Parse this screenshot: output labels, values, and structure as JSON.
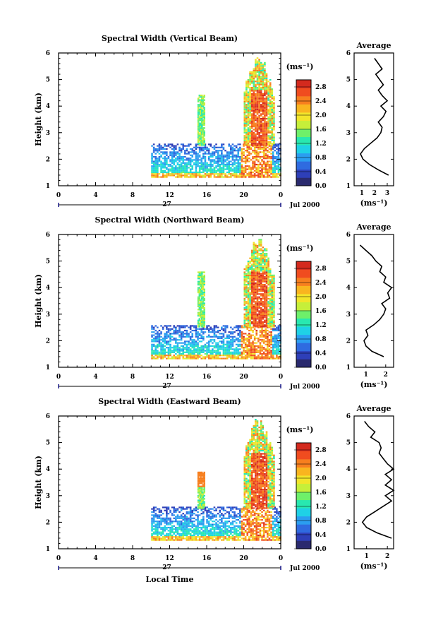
{
  "chart_data": {
    "type": "heatmap",
    "axes_style": {
      "frame_color": "#000000",
      "colorbar_low": "#2a2a6e",
      "colorbar_high": "#d42a1e"
    },
    "color_stops": [
      "#2a2a6e",
      "#2e3fb8",
      "#2f6be0",
      "#2b9ef0",
      "#1fd1e6",
      "#28e8b0",
      "#6ef06a",
      "#c6ef3a",
      "#f2e52a",
      "#f9b51f",
      "#f77f1e",
      "#f04c1f",
      "#d42a1e"
    ],
    "panels": [
      {
        "id": "vertical",
        "title": "Spectral Width (Vertical Beam)",
        "ylabel": "Height (km)",
        "ylim": [
          1,
          6
        ],
        "yticks": [
          "1",
          "2",
          "3",
          "4",
          "5",
          "6"
        ],
        "xlim": [
          0,
          24
        ],
        "xticks": [
          "0",
          "4",
          "8",
          "12",
          "16",
          "20",
          "0"
        ],
        "day_label": "27",
        "date_label": "Jul 2000",
        "colorbar": {
          "unit": "(ms⁻¹)",
          "range": [
            0.0,
            3.0
          ],
          "ticks": [
            "2.8",
            "2.4",
            "2.0",
            "1.6",
            "1.2",
            "0.8",
            "0.4",
            "0.0"
          ]
        },
        "avg_title": "Average",
        "avg_xlabel": "(ms⁻¹)",
        "avg_xlim": [
          0.4,
          3.5
        ],
        "avg_xticks": [
          1,
          2,
          3
        ],
        "avg_xticklabels": [
          "1",
          "2",
          "3"
        ],
        "average_profile": {
          "heights": [
            1.4,
            1.6,
            1.8,
            2.0,
            2.2,
            2.4,
            2.6,
            2.8,
            3.0,
            3.2,
            3.4,
            3.6,
            3.8,
            4.0,
            4.2,
            4.4,
            4.6,
            4.8,
            5.0,
            5.2,
            5.4,
            5.6,
            5.8
          ],
          "values": [
            3.1,
            2.3,
            1.6,
            1.1,
            0.9,
            1.2,
            1.7,
            2.2,
            2.5,
            2.6,
            2.3,
            2.7,
            2.9,
            2.5,
            3.0,
            2.6,
            2.3,
            2.7,
            2.4,
            2.1,
            2.6,
            2.3,
            2.0
          ]
        }
      },
      {
        "id": "northward",
        "title": "Spectral Width (Northward Beam)",
        "ylabel": "Height (km)",
        "ylim": [
          1,
          6
        ],
        "yticks": [
          "1",
          "2",
          "3",
          "4",
          "5",
          "6"
        ],
        "xlim": [
          0,
          24
        ],
        "xticks": [
          "0",
          "4",
          "8",
          "12",
          "16",
          "20",
          "0"
        ],
        "day_label": "27",
        "date_label": "Jul 2000",
        "colorbar": {
          "unit": "(ms⁻¹)",
          "range": [
            0.0,
            3.0
          ],
          "ticks": [
            "2.8",
            "2.4",
            "2.0",
            "1.6",
            "1.2",
            "0.8",
            "0.4",
            "0.0"
          ]
        },
        "avg_title": "Average",
        "avg_xlabel": "(ms⁻¹)",
        "avg_xlim": [
          0.4,
          2.4
        ],
        "avg_xticks": [
          1,
          2
        ],
        "avg_xticklabels": [
          "1",
          "2"
        ],
        "average_profile": {
          "heights": [
            1.4,
            1.6,
            1.8,
            2.0,
            2.2,
            2.4,
            2.6,
            2.8,
            3.0,
            3.2,
            3.4,
            3.6,
            3.8,
            4.0,
            4.2,
            4.4,
            4.6,
            4.8,
            5.0,
            5.2,
            5.4,
            5.6
          ],
          "values": [
            1.9,
            1.3,
            1.0,
            0.9,
            1.1,
            1.0,
            1.4,
            1.7,
            1.9,
            2.0,
            1.8,
            2.2,
            2.1,
            2.3,
            1.9,
            2.0,
            1.7,
            1.8,
            1.5,
            1.3,
            1.0,
            0.7
          ]
        }
      },
      {
        "id": "eastward",
        "title": "Spectral Width (Eastward Beam)",
        "ylabel": "Height (km)",
        "ylim": [
          1,
          6
        ],
        "yticks": [
          "1",
          "2",
          "3",
          "4",
          "5",
          "6"
        ],
        "xlim": [
          0,
          24
        ],
        "xticks": [
          "0",
          "4",
          "8",
          "12",
          "16",
          "20",
          "0"
        ],
        "day_label": "27",
        "date_label": "Jul 2000",
        "xlabel": "Local Time",
        "colorbar": {
          "unit": "(ms⁻¹)",
          "range": [
            0.0,
            3.0
          ],
          "ticks": [
            "2.8",
            "2.4",
            "2.0",
            "1.6",
            "1.2",
            "0.8",
            "0.4",
            "0.0"
          ]
        },
        "avg_title": "Average",
        "avg_xlabel": "(ms⁻¹)",
        "avg_xlim": [
          0.4,
          2.3
        ],
        "avg_xticks": [
          1,
          2
        ],
        "avg_xticklabels": [
          "1",
          "2"
        ],
        "average_profile": {
          "heights": [
            1.4,
            1.6,
            1.8,
            2.0,
            2.2,
            2.4,
            2.6,
            2.8,
            3.0,
            3.2,
            3.4,
            3.6,
            3.8,
            4.0,
            4.2,
            4.4,
            4.6,
            4.8,
            5.0,
            5.2,
            5.4,
            5.6,
            5.8
          ],
          "values": [
            2.2,
            1.5,
            1.0,
            0.8,
            1.0,
            1.4,
            1.8,
            2.2,
            1.9,
            2.3,
            1.9,
            2.2,
            1.9,
            2.3,
            2.0,
            1.8,
            1.6,
            1.7,
            1.6,
            1.2,
            1.4,
            1.1,
            0.9
          ]
        }
      }
    ],
    "data_regions": [
      {
        "x": [
          10,
          24
        ],
        "y": [
          1.3,
          2.5
        ],
        "value": 0.7,
        "note": "low-level echo layer"
      },
      {
        "x": [
          15,
          15.6
        ],
        "y": [
          1.3,
          4.4
        ],
        "value": 1.4,
        "note": "narrow column"
      },
      {
        "x": [
          20,
          23
        ],
        "y": [
          1.3,
          5.8
        ],
        "value": 2.5,
        "note": "broad high-width column"
      }
    ]
  }
}
